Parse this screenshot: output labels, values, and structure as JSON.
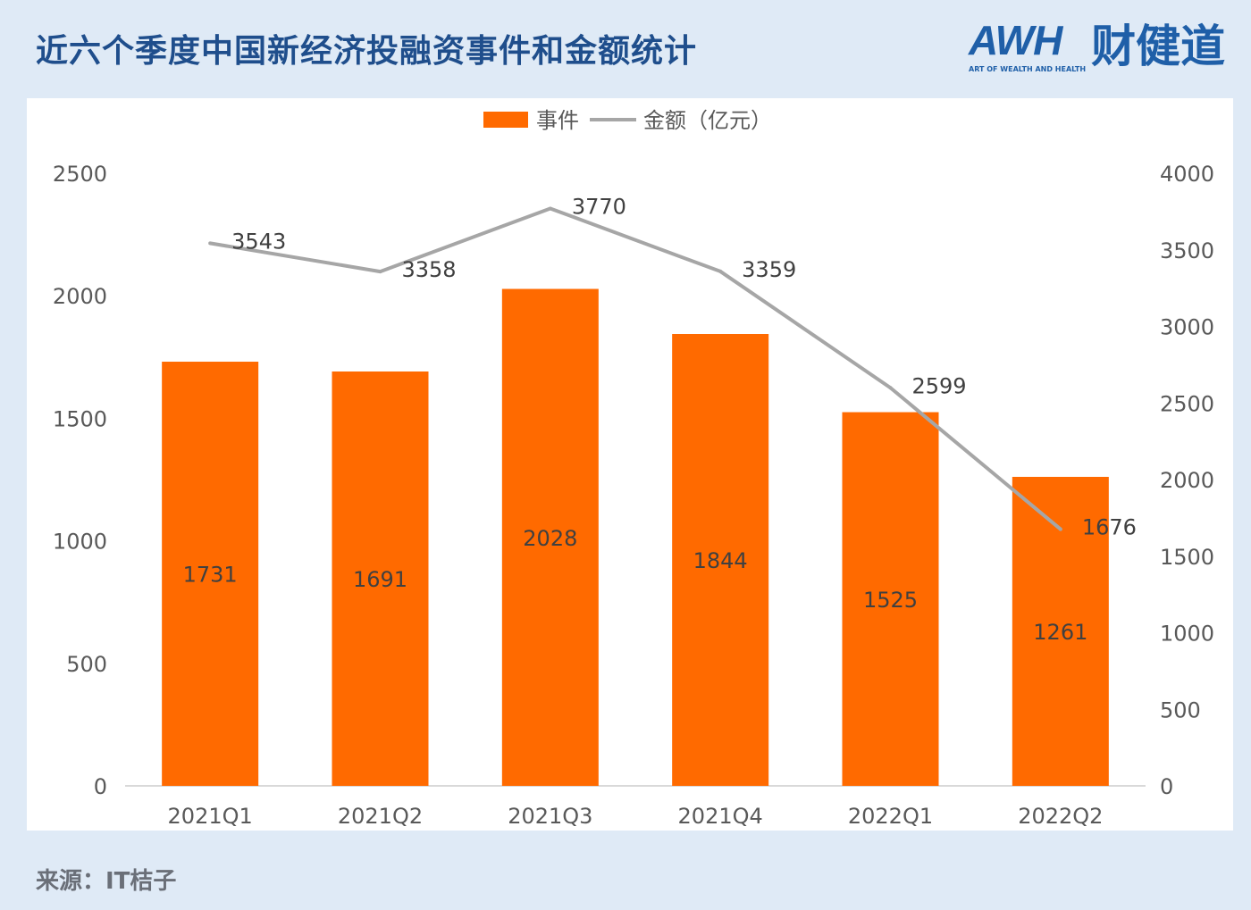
{
  "title": "近六个季度中国新经济投融资事件和金额统计",
  "logo": {
    "text": "AWH财健道",
    "subtitle": "ART OF WEALTH AND HEALTH"
  },
  "source": "来源：IT桔子",
  "colors": {
    "bar": "#ff6a00",
    "line": "#a6a6a6",
    "title": "#1f4e8c",
    "background": "#dfeaf6"
  },
  "chart_data": {
    "type": "bar",
    "categories": [
      "2021Q1",
      "2021Q2",
      "2021Q3",
      "2021Q4",
      "2022Q1",
      "2022Q2"
    ],
    "series": [
      {
        "name": "事件",
        "type": "bar",
        "axis": "left",
        "values": [
          1731,
          1691,
          2028,
          1844,
          1525,
          1261
        ]
      },
      {
        "name": "金额（亿元）",
        "type": "line",
        "axis": "right",
        "values": [
          3543,
          3358,
          3770,
          3359,
          2599,
          1676
        ]
      }
    ],
    "y_left": {
      "range": [
        0,
        2500
      ],
      "ticks": [
        0,
        500,
        1000,
        1500,
        2000,
        2500
      ]
    },
    "y_right": {
      "range": [
        0,
        4000
      ],
      "ticks": [
        0,
        500,
        1000,
        1500,
        2000,
        2500,
        3000,
        3500,
        4000
      ]
    },
    "legend_position": "top",
    "grid": false
  }
}
